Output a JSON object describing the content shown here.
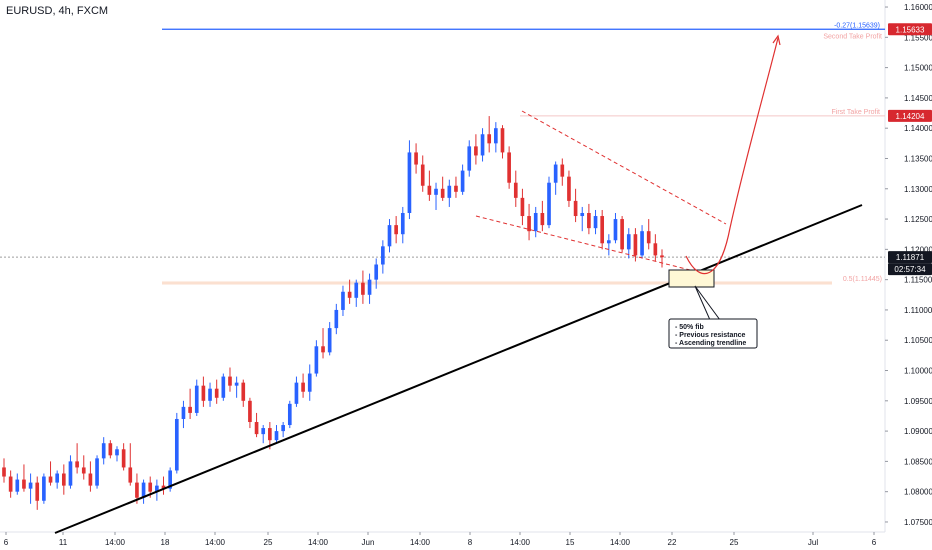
{
  "symbol_title": "EURUSD, 4h, FXCM",
  "chart_data": {
    "type": "candlestick",
    "title": "EURUSD, 4h, FXCM",
    "ylim": [
      1.0735,
      1.161
    ],
    "y_ticks": [
      "1.16000",
      "1.15500",
      "1.15000",
      "1.14500",
      "1.14000",
      "1.13500",
      "1.13000",
      "1.12500",
      "1.12000",
      "1.11500",
      "1.11000",
      "1.10500",
      "1.10000",
      "1.09500",
      "1.09000",
      "1.08500",
      "1.08000",
      "1.07500"
    ],
    "x_ticks": [
      "6",
      "11",
      "14:00",
      "18",
      "14:00",
      "25",
      "14:00",
      "Jun",
      "14:00",
      "8",
      "14:00",
      "15",
      "14:00",
      "22",
      "25",
      "Jul",
      "6"
    ],
    "candle_count": 100,
    "candles": [
      [
        1.084,
        1.0855,
        1.0815,
        1.0825
      ],
      [
        1.0825,
        1.0835,
        1.079,
        1.08
      ],
      [
        1.08,
        1.083,
        1.0795,
        1.082
      ],
      [
        1.082,
        1.0845,
        1.08,
        1.0805
      ],
      [
        1.0805,
        1.083,
        1.078,
        1.0815
      ],
      [
        1.0815,
        1.0825,
        1.077,
        1.0785
      ],
      [
        1.0785,
        1.083,
        1.078,
        1.0825
      ],
      [
        1.0825,
        1.085,
        1.081,
        1.0815
      ],
      [
        1.0815,
        1.0835,
        1.0805,
        1.083
      ],
      [
        1.083,
        1.0845,
        1.0795,
        1.081
      ],
      [
        1.081,
        1.086,
        1.0805,
        1.085
      ],
      [
        1.085,
        1.088,
        1.083,
        1.084
      ],
      [
        1.084,
        1.086,
        1.082,
        1.083
      ],
      [
        1.083,
        1.085,
        1.08,
        1.081
      ],
      [
        1.081,
        1.086,
        1.0805,
        1.0855
      ],
      [
        1.0855,
        1.089,
        1.0845,
        1.088
      ],
      [
        1.088,
        1.0885,
        1.0855,
        1.086
      ],
      [
        1.086,
        1.0875,
        1.085,
        1.087
      ],
      [
        1.087,
        1.088,
        1.0835,
        1.084
      ],
      [
        1.084,
        1.088,
        1.081,
        1.0815
      ],
      [
        1.0815,
        1.083,
        1.078,
        1.079
      ],
      [
        1.079,
        1.082,
        1.078,
        1.0815
      ],
      [
        1.0815,
        1.0825,
        1.079,
        1.08
      ],
      [
        1.08,
        1.082,
        1.0785,
        1.081
      ],
      [
        1.081,
        1.0825,
        1.0795,
        1.0805
      ],
      [
        1.0805,
        1.084,
        1.08,
        1.0835
      ],
      [
        1.0835,
        1.093,
        1.083,
        1.092
      ],
      [
        1.092,
        1.095,
        1.0905,
        1.094
      ],
      [
        1.094,
        1.097,
        1.092,
        1.093
      ],
      [
        1.093,
        1.0985,
        1.0925,
        1.0975
      ],
      [
        1.0975,
        1.099,
        1.094,
        1.095
      ],
      [
        1.095,
        1.098,
        1.094,
        1.097
      ],
      [
        1.097,
        1.0985,
        1.0945,
        1.0955
      ],
      [
        1.0955,
        1.0995,
        1.095,
        1.099
      ],
      [
        1.099,
        1.1005,
        1.0965,
        1.0975
      ],
      [
        1.0975,
        1.099,
        1.0955,
        1.098
      ],
      [
        1.098,
        1.0985,
        1.094,
        1.095
      ],
      [
        1.095,
        1.0955,
        1.0905,
        1.0915
      ],
      [
        1.0915,
        1.093,
        1.089,
        1.0895
      ],
      [
        1.0895,
        1.091,
        1.088,
        1.0905
      ],
      [
        1.0905,
        1.0915,
        1.087,
        1.0885
      ],
      [
        1.0885,
        1.091,
        1.088,
        1.09
      ],
      [
        1.09,
        1.0915,
        1.089,
        1.091
      ],
      [
        1.091,
        1.095,
        1.0905,
        1.0945
      ],
      [
        1.0945,
        1.099,
        1.094,
        1.098
      ],
      [
        1.098,
        1.0995,
        1.0955,
        1.0965
      ],
      [
        1.0965,
        1.101,
        1.095,
        1.0995
      ],
      [
        1.0995,
        1.105,
        1.099,
        1.104
      ],
      [
        1.104,
        1.107,
        1.102,
        1.103
      ],
      [
        1.103,
        1.108,
        1.1025,
        1.107
      ],
      [
        1.107,
        1.111,
        1.106,
        1.11
      ],
      [
        1.11,
        1.114,
        1.109,
        1.113
      ],
      [
        1.113,
        1.115,
        1.111,
        1.112
      ],
      [
        1.112,
        1.115,
        1.1105,
        1.1145
      ],
      [
        1.1145,
        1.1165,
        1.111,
        1.1125
      ],
      [
        1.1125,
        1.116,
        1.111,
        1.115
      ],
      [
        1.115,
        1.1185,
        1.1135,
        1.1175
      ],
      [
        1.1175,
        1.1215,
        1.116,
        1.1205
      ],
      [
        1.1205,
        1.125,
        1.1195,
        1.124
      ],
      [
        1.124,
        1.1255,
        1.121,
        1.1225
      ],
      [
        1.1225,
        1.127,
        1.121,
        1.126
      ],
      [
        1.126,
        1.138,
        1.125,
        1.136
      ],
      [
        1.136,
        1.1375,
        1.1325,
        1.134
      ],
      [
        1.134,
        1.1355,
        1.1295,
        1.1305
      ],
      [
        1.1305,
        1.133,
        1.128,
        1.129
      ],
      [
        1.129,
        1.131,
        1.1265,
        1.13
      ],
      [
        1.13,
        1.132,
        1.128,
        1.1285
      ],
      [
        1.1285,
        1.1315,
        1.127,
        1.1305
      ],
      [
        1.1305,
        1.132,
        1.1285,
        1.1295
      ],
      [
        1.1295,
        1.134,
        1.129,
        1.133
      ],
      [
        1.133,
        1.138,
        1.132,
        1.137
      ],
      [
        1.137,
        1.139,
        1.134,
        1.1355
      ],
      [
        1.1355,
        1.14,
        1.1345,
        1.139
      ],
      [
        1.139,
        1.142,
        1.136,
        1.1375
      ],
      [
        1.1375,
        1.141,
        1.136,
        1.14
      ],
      [
        1.14,
        1.1405,
        1.135,
        1.136
      ],
      [
        1.136,
        1.137,
        1.13,
        1.131
      ],
      [
        1.131,
        1.133,
        1.127,
        1.1285
      ],
      [
        1.1285,
        1.13,
        1.124,
        1.1255
      ],
      [
        1.1255,
        1.1275,
        1.1215,
        1.123
      ],
      [
        1.123,
        1.127,
        1.122,
        1.126
      ],
      [
        1.126,
        1.128,
        1.123,
        1.124
      ],
      [
        1.124,
        1.132,
        1.1235,
        1.131
      ],
      [
        1.131,
        1.1345,
        1.129,
        1.134
      ],
      [
        1.134,
        1.135,
        1.1305,
        1.132
      ],
      [
        1.132,
        1.133,
        1.127,
        1.128
      ],
      [
        1.128,
        1.13,
        1.1245,
        1.1255
      ],
      [
        1.1255,
        1.127,
        1.123,
        1.126
      ],
      [
        1.126,
        1.1275,
        1.1225,
        1.1235
      ],
      [
        1.1235,
        1.1265,
        1.1225,
        1.1255
      ],
      [
        1.1255,
        1.1265,
        1.12,
        1.121
      ],
      [
        1.121,
        1.1225,
        1.119,
        1.1215
      ],
      [
        1.1215,
        1.126,
        1.121,
        1.125
      ],
      [
        1.125,
        1.1255,
        1.1195,
        1.12
      ],
      [
        1.12,
        1.1235,
        1.1185,
        1.1225
      ],
      [
        1.1225,
        1.1235,
        1.118,
        1.119
      ],
      [
        1.119,
        1.124,
        1.1185,
        1.123
      ],
      [
        1.123,
        1.125,
        1.12,
        1.121
      ],
      [
        1.121,
        1.1225,
        1.118,
        1.119
      ],
      [
        1.119,
        1.12,
        1.117,
        1.1187
      ]
    ],
    "colors": {
      "up": "#2962ff",
      "down": "#e03131",
      "trendline": "#000000",
      "projection": "#e03131"
    },
    "horizontal_levels": [
      {
        "price": 1.15633,
        "axis_label": "1.15633",
        "annotation": "-0.27(1.15639)",
        "note": "Second Take Profit",
        "color": "#2962ff",
        "label_bg": "#d7282f"
      },
      {
        "price": 1.14204,
        "axis_label": "1.14204",
        "annotation": "First Take Profit",
        "note": "",
        "color": "#f4c7c7",
        "label_bg": "#d7282f"
      },
      {
        "price": 1.11871,
        "axis_label": "1.11871",
        "annotation": "",
        "note": "02:57:34",
        "color": "#9e9e9e",
        "label_bg": "#131722"
      },
      {
        "price": 1.11445,
        "axis_label": "",
        "annotation": "0.5(1.11445)",
        "note": "",
        "color": "#f5b89a",
        "label_bg": ""
      }
    ],
    "callout_lines": [
      "- 50% fib",
      "- Previous resistance",
      "- Ascending trendline"
    ]
  }
}
